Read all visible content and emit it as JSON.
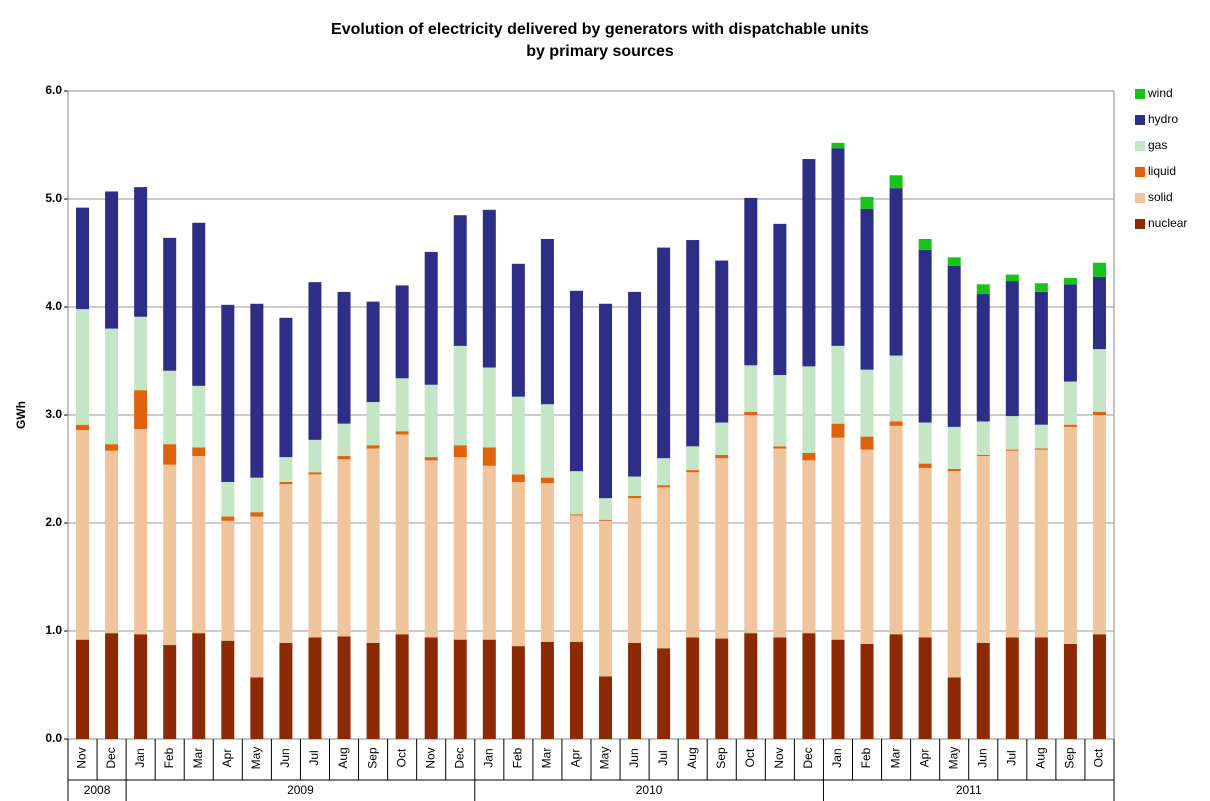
{
  "chart_data": {
    "type": "stacked-bar",
    "title": [
      "Evolution of electricity delivered by generators with dispatchable units",
      "by primary sources"
    ],
    "y_label": "GWh",
    "categories": [
      "Nov",
      "Dec",
      "Jan",
      "Feb",
      "Mar",
      "Apr",
      "May",
      "Jun",
      "Jul",
      "Aug",
      "Sep",
      "Oct",
      "Nov",
      "Dec",
      "Jan",
      "Feb",
      "Mar",
      "Apr",
      "May",
      "Jun",
      "Jul",
      "Aug",
      "Sep",
      "Oct",
      "Nov",
      "Dec",
      "Jan",
      "Feb",
      "Mar",
      "Apr",
      "May",
      "Jun",
      "Jul",
      "Aug",
      "Sep",
      "Oct"
    ],
    "years": [
      "2008",
      "2008",
      "2009",
      "2009",
      "2009",
      "2009",
      "2009",
      "2009",
      "2009",
      "2009",
      "2009",
      "2009",
      "2009",
      "2009",
      "2010",
      "2010",
      "2010",
      "2010",
      "2010",
      "2010",
      "2010",
      "2010",
      "2010",
      "2010",
      "2010",
      "2010",
      "2011",
      "2011",
      "2011",
      "2011",
      "2011",
      "2011",
      "2011",
      "2011",
      "2011",
      "2011"
    ],
    "series": [
      {
        "name": "nuclear",
        "color": "#8b2a05",
        "values": [
          0.92,
          0.98,
          0.97,
          0.87,
          0.98,
          0.91,
          0.57,
          0.89,
          0.94,
          0.95,
          0.89,
          0.97,
          0.94,
          0.92,
          0.92,
          0.86,
          0.9,
          0.9,
          0.58,
          0.89,
          0.84,
          0.94,
          0.93,
          0.98,
          0.94,
          0.98,
          0.92,
          0.88,
          0.97,
          0.94,
          0.57,
          0.89,
          0.94,
          0.94,
          0.88,
          0.97
        ]
      },
      {
        "name": "solid",
        "color": "#f0c49c",
        "values": [
          1.94,
          1.69,
          1.9,
          1.67,
          1.64,
          1.11,
          1.49,
          1.47,
          1.51,
          1.64,
          1.8,
          1.85,
          1.64,
          1.69,
          1.61,
          1.52,
          1.47,
          1.17,
          1.44,
          1.34,
          1.49,
          1.53,
          1.67,
          2.02,
          1.75,
          1.6,
          1.87,
          1.8,
          1.93,
          1.57,
          1.91,
          1.73,
          1.73,
          1.74,
          2.01,
          2.03
        ]
      },
      {
        "name": "liquid",
        "color": "#e0620c",
        "values": [
          0.05,
          0.06,
          0.36,
          0.19,
          0.08,
          0.04,
          0.04,
          0.02,
          0.02,
          0.03,
          0.03,
          0.03,
          0.03,
          0.11,
          0.17,
          0.07,
          0.05,
          0.01,
          0.01,
          0.02,
          0.02,
          0.02,
          0.03,
          0.03,
          0.02,
          0.07,
          0.13,
          0.12,
          0.04,
          0.04,
          0.02,
          0.01,
          0.01,
          0.01,
          0.02,
          0.03
        ]
      },
      {
        "name": "gas",
        "color": "#c4e6c4",
        "values": [
          1.07,
          1.07,
          0.68,
          0.68,
          0.57,
          0.32,
          0.32,
          0.23,
          0.3,
          0.3,
          0.4,
          0.49,
          0.67,
          0.92,
          0.74,
          0.72,
          0.68,
          0.4,
          0.2,
          0.18,
          0.25,
          0.22,
          0.3,
          0.43,
          0.66,
          0.8,
          0.72,
          0.62,
          0.61,
          0.38,
          0.39,
          0.31,
          0.31,
          0.22,
          0.4,
          0.58
        ]
      },
      {
        "name": "hydro",
        "color": "#2e2e86",
        "values": [
          0.94,
          1.27,
          1.2,
          1.23,
          1.51,
          1.64,
          1.61,
          1.29,
          1.46,
          1.22,
          0.93,
          0.86,
          1.23,
          1.21,
          1.46,
          1.23,
          1.53,
          1.67,
          1.8,
          1.71,
          1.95,
          1.91,
          1.5,
          1.55,
          1.4,
          1.92,
          1.83,
          1.49,
          1.55,
          1.6,
          1.49,
          1.18,
          1.25,
          1.23,
          0.9,
          0.67
        ]
      },
      {
        "name": "wind",
        "color": "#19c419",
        "values": [
          0,
          0,
          0,
          0,
          0,
          0,
          0,
          0,
          0,
          0,
          0,
          0,
          0,
          0,
          0,
          0,
          0,
          0,
          0,
          0,
          0,
          0,
          0,
          0,
          0,
          0,
          0.05,
          0.11,
          0.12,
          0.1,
          0.08,
          0.09,
          0.06,
          0.08,
          0.06,
          0.13
        ]
      }
    ],
    "ylim": [
      0,
      6
    ],
    "yticks": [
      {
        "value": 0,
        "label": "0.0"
      },
      {
        "value": 1,
        "label": "1.0"
      },
      {
        "value": 2,
        "label": "2.0"
      },
      {
        "value": 3,
        "label": "3.0"
      },
      {
        "value": 4,
        "label": "4.0"
      },
      {
        "value": 5,
        "label": "5.0"
      },
      {
        "value": 6,
        "label": "6.0"
      }
    ],
    "grid": true,
    "legend": "right"
  }
}
